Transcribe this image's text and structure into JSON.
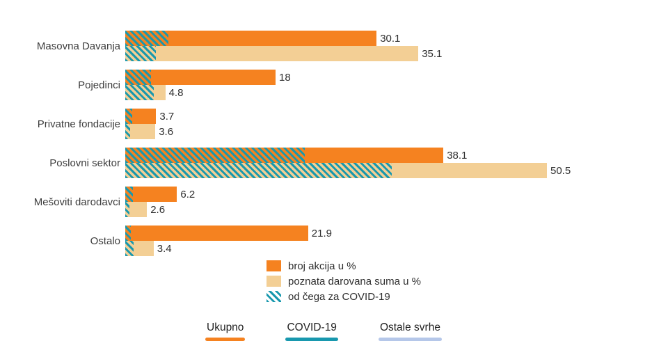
{
  "colors": {
    "orange": "#F58220",
    "tan": "#F3CF95",
    "teal": "#1898AE",
    "periwinkle": "#B5C7E9",
    "text": "#3D3D3D"
  },
  "chart_data": {
    "type": "bar",
    "orientation": "horizontal",
    "title": "",
    "xlabel": "",
    "ylabel": "",
    "xlim": [
      0,
      60
    ],
    "grid": false,
    "categories": [
      "Masovna Davanja",
      "Pojedinci",
      "Privatne fondacije",
      "Poslovni sektor",
      "Mešoviti darodavci",
      "Ostalo"
    ],
    "series": [
      {
        "name": "broj akcija u %",
        "color": "#F58220",
        "values": [
          30.1,
          18,
          3.7,
          38.1,
          6.2,
          21.9
        ],
        "covid_overlay_values": [
          5.2,
          3.1,
          0.8,
          21.5,
          0.9,
          0.7
        ]
      },
      {
        "name": "poznata darovana suma u %",
        "color": "#F3CF95",
        "values": [
          35.1,
          4.8,
          3.6,
          50.5,
          2.6,
          3.4
        ],
        "covid_overlay_values": [
          3.7,
          3.4,
          0.6,
          31.9,
          0.5,
          1.0
        ]
      }
    ],
    "overlay_name": "od čega za COVID-19",
    "overlay_color": "#1898AE",
    "value_labels_shown": true,
    "legend_position": "center-below-chart"
  },
  "legend": {
    "items": [
      {
        "label": "broj akcija u %",
        "swatch": "orange"
      },
      {
        "label": "poznata darovana suma u %",
        "swatch": "tan"
      },
      {
        "label": "od čega za COVID-19",
        "swatch": "hatch"
      }
    ]
  },
  "tabs": {
    "items": [
      {
        "label": "Ukupno",
        "underline_color": "#F58220"
      },
      {
        "label": "COVID-19",
        "underline_color": "#1898AE"
      },
      {
        "label": "Ostale svrhe",
        "underline_color": "#B5C7E9"
      }
    ]
  }
}
